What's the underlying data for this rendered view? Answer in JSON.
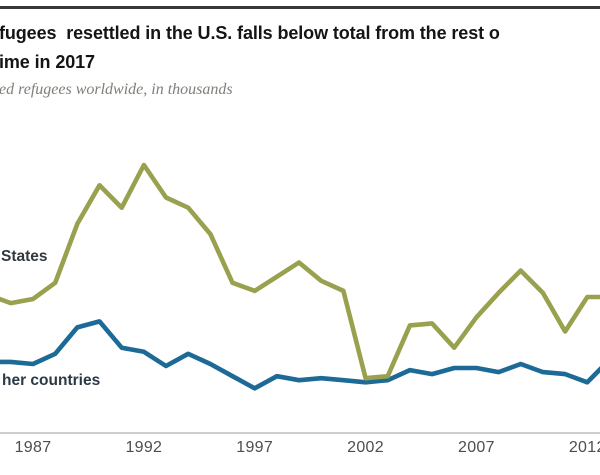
{
  "card": {
    "title_line1": "fugees  resettled in the U.S. falls below total from the rest o",
    "title_line2": "ime in 2017",
    "subtitle": "ed refugees worldwide, in thousands"
  },
  "chart_data": {
    "type": "line",
    "title_visible": "fugees  resettled in the U.S. falls below total from the rest o / ime in 2017",
    "subtitle_visible": "ed refugees worldwide, in thousands",
    "unit": "thousands of resettled refugees",
    "grid": false,
    "legend_position": "direct-line-labels-left",
    "ylim": [
      0,
      150
    ],
    "x_ticks": [
      1987,
      1992,
      1997,
      2002,
      2007,
      2012
    ],
    "x": [
      1985,
      1986,
      1987,
      1988,
      1989,
      1990,
      1991,
      1992,
      1993,
      1994,
      1995,
      1996,
      1997,
      1998,
      1999,
      2000,
      2001,
      2002,
      2003,
      2004,
      2005,
      2006,
      2007,
      2008,
      2009,
      2010,
      2011,
      2012,
      2013
    ],
    "series": [
      {
        "label": "States",
        "color": "#99a14e",
        "values": [
          68,
          64,
          66,
          74,
          103,
          122,
          111,
          132,
          116,
          111,
          98,
          74,
          70,
          77,
          84,
          75,
          70,
          27,
          28,
          53,
          54,
          42,
          57,
          69,
          80,
          69,
          50,
          67,
          67
        ]
      },
      {
        "label": "her countries",
        "color": "#1d6a96",
        "values": [
          35,
          35,
          34,
          39,
          52,
          55,
          42,
          40,
          33,
          39,
          34,
          28,
          22,
          28,
          26,
          27,
          26,
          25,
          26,
          31,
          29,
          32,
          32,
          30,
          34,
          30,
          29,
          25,
          36
        ]
      }
    ],
    "axis_colors": {
      "baseline": "#bdbdbd",
      "tick_text": "#4d4d4d"
    }
  }
}
